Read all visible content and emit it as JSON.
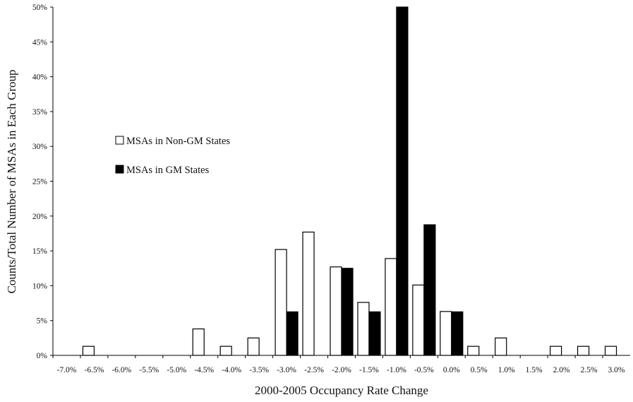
{
  "chart_data": {
    "type": "bar",
    "title": "",
    "xlabel": "2000-2005 Occupancy Rate Change",
    "ylabel": "Counts/Total Number of MSAs in Each Group",
    "categories": [
      "-7.0%",
      "-6.5%",
      "-6.0%",
      "-5.5%",
      "-5.0%",
      "-4.5%",
      "-4.0%",
      "-3.5%",
      "-3.0%",
      "-2.5%",
      "-2.0%",
      "-1.5%",
      "-1.0%",
      "-0.5%",
      "0.0%",
      "0.5%",
      "1.0%",
      "1.5%",
      "2.0%",
      "2.5%",
      "3.0%"
    ],
    "yticks": [
      "0%",
      "5%",
      "10%",
      "15%",
      "20%",
      "25%",
      "30%",
      "35%",
      "40%",
      "45%",
      "50%"
    ],
    "ylim": [
      0,
      50
    ],
    "grid": false,
    "legend_position": "upper-left",
    "series": [
      {
        "name": "MSAs in Non-GM States",
        "color": "#ffffff",
        "values": [
          0,
          1.3,
          0,
          0,
          0,
          3.8,
          1.3,
          2.5,
          15.2,
          17.7,
          12.7,
          7.6,
          13.9,
          10.1,
          6.3,
          1.3,
          2.5,
          0,
          1.3,
          1.3,
          1.3
        ]
      },
      {
        "name": "MSAs in GM States",
        "color": "#000000",
        "values": [
          0,
          0,
          0,
          0,
          0,
          0,
          0,
          0,
          6.25,
          0,
          12.5,
          6.25,
          50,
          18.75,
          6.25,
          0,
          0,
          0,
          0,
          0,
          0
        ]
      }
    ]
  }
}
